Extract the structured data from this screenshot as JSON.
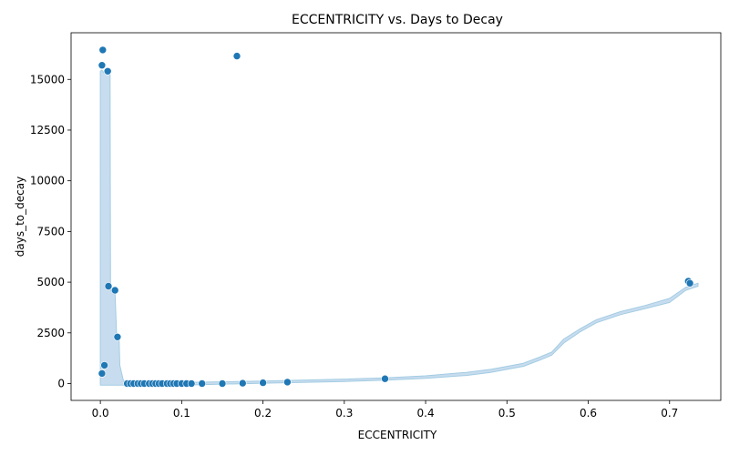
{
  "chart_data": {
    "type": "scatter",
    "title": "ECCENTRICITY vs. Days to Decay",
    "xlabel": "ECCENTRICITY",
    "ylabel": "days_to_decay",
    "xlim": [
      -0.036,
      0.763
    ],
    "ylim": [
      -830,
      17300
    ],
    "xticks": [
      0.0,
      0.1,
      0.2,
      0.3,
      0.4,
      0.5,
      0.6,
      0.7
    ],
    "xtick_labels": [
      "0.0",
      "0.1",
      "0.2",
      "0.3",
      "0.4",
      "0.5",
      "0.6",
      "0.7"
    ],
    "yticks": [
      0,
      2500,
      5000,
      7500,
      10000,
      12500,
      15000
    ],
    "ytick_labels": [
      "0",
      "2500",
      "5000",
      "7500",
      "10000",
      "12500",
      "15000"
    ],
    "grid": false,
    "colors": {
      "point": "#1f77b4",
      "band": "#c6dbef",
      "band_edge": "#9ecae1",
      "axis": "#000000"
    },
    "series": [
      {
        "points": [
          {
            "x": 0.003,
            "y": 16450
          },
          {
            "x": 0.002,
            "y": 15700
          },
          {
            "x": 0.009,
            "y": 15400
          },
          {
            "x": 0.168,
            "y": 16150
          },
          {
            "x": 0.002,
            "y": 500
          },
          {
            "x": 0.005,
            "y": 900
          },
          {
            "x": 0.01,
            "y": 4800
          },
          {
            "x": 0.018,
            "y": 4600
          },
          {
            "x": 0.021,
            "y": 2300
          },
          {
            "x": 0.723,
            "y": 5050
          },
          {
            "x": 0.725,
            "y": 4950
          },
          {
            "x": 0.033,
            "y": 0
          },
          {
            "x": 0.037,
            "y": 0
          },
          {
            "x": 0.041,
            "y": 0
          },
          {
            "x": 0.046,
            "y": 0
          },
          {
            "x": 0.05,
            "y": 0
          },
          {
            "x": 0.054,
            "y": 0
          },
          {
            "x": 0.06,
            "y": 0
          },
          {
            "x": 0.064,
            "y": 0
          },
          {
            "x": 0.068,
            "y": 0
          },
          {
            "x": 0.072,
            "y": 0
          },
          {
            "x": 0.076,
            "y": 0
          },
          {
            "x": 0.082,
            "y": 0
          },
          {
            "x": 0.086,
            "y": 0
          },
          {
            "x": 0.09,
            "y": 0
          },
          {
            "x": 0.094,
            "y": 0
          },
          {
            "x": 0.1,
            "y": 0
          },
          {
            "x": 0.106,
            "y": 0
          },
          {
            "x": 0.112,
            "y": 0
          },
          {
            "x": 0.125,
            "y": 0
          },
          {
            "x": 0.15,
            "y": 0
          },
          {
            "x": 0.175,
            "y": 20
          },
          {
            "x": 0.2,
            "y": 40
          },
          {
            "x": 0.23,
            "y": 70
          },
          {
            "x": 0.35,
            "y": 240
          }
        ]
      },
      {
        "band_upper": [
          [
            0.0,
            15400
          ],
          [
            0.002,
            15450
          ],
          [
            0.004,
            15350
          ],
          [
            0.006,
            15400
          ],
          [
            0.008,
            15300
          ],
          [
            0.01,
            15350
          ],
          [
            0.012,
            15250
          ],
          [
            0.0125,
            4600
          ],
          [
            0.015,
            4500
          ],
          [
            0.018,
            4500
          ],
          [
            0.02,
            2400
          ],
          [
            0.023,
            2350
          ],
          [
            0.024,
            900
          ],
          [
            0.028,
            200
          ],
          [
            0.03,
            60
          ],
          [
            0.1,
            60
          ],
          [
            0.2,
            120
          ],
          [
            0.3,
            220
          ],
          [
            0.35,
            280
          ],
          [
            0.4,
            380
          ],
          [
            0.45,
            550
          ],
          [
            0.48,
            700
          ],
          [
            0.5,
            850
          ],
          [
            0.52,
            1000
          ],
          [
            0.54,
            1300
          ],
          [
            0.555,
            1550
          ],
          [
            0.57,
            2200
          ],
          [
            0.59,
            2700
          ],
          [
            0.61,
            3150
          ],
          [
            0.64,
            3550
          ],
          [
            0.67,
            3850
          ],
          [
            0.7,
            4200
          ],
          [
            0.72,
            4750
          ],
          [
            0.735,
            4950
          ]
        ],
        "band_lower": [
          [
            0.735,
            4800
          ],
          [
            0.72,
            4600
          ],
          [
            0.7,
            4000
          ],
          [
            0.67,
            3700
          ],
          [
            0.64,
            3400
          ],
          [
            0.61,
            3000
          ],
          [
            0.59,
            2550
          ],
          [
            0.57,
            2000
          ],
          [
            0.555,
            1400
          ],
          [
            0.54,
            1150
          ],
          [
            0.52,
            850
          ],
          [
            0.5,
            700
          ],
          [
            0.48,
            550
          ],
          [
            0.45,
            400
          ],
          [
            0.4,
            260
          ],
          [
            0.35,
            170
          ],
          [
            0.3,
            100
          ],
          [
            0.2,
            20
          ],
          [
            0.1,
            -80
          ],
          [
            0.03,
            -80
          ],
          [
            0.0,
            -80
          ]
        ]
      }
    ]
  }
}
